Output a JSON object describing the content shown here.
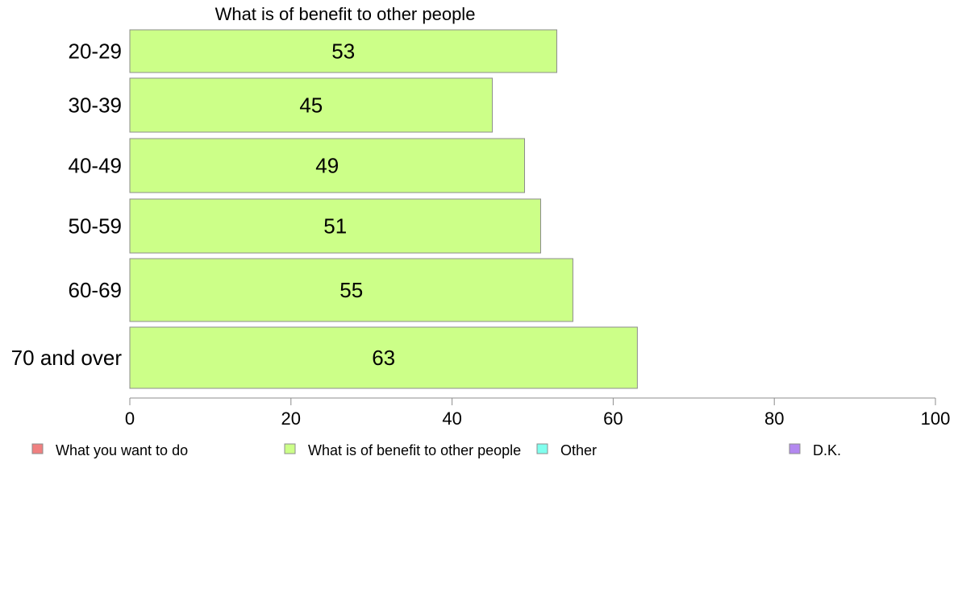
{
  "chart_data": {
    "type": "bar",
    "orientation": "horizontal",
    "title": "What is of benefit to other people",
    "categories": [
      "20-29",
      "30-39",
      "40-49",
      "50-59",
      "60-69",
      "70 and over"
    ],
    "series": [
      {
        "name": "What is of benefit to other people",
        "values": [
          53,
          45,
          49,
          51,
          55,
          63
        ]
      }
    ],
    "xlim": [
      0,
      100
    ],
    "xticks": [
      "0",
      "20",
      "40",
      "60",
      "80",
      "100"
    ],
    "xtick_values": [
      0,
      20,
      40,
      60,
      80,
      100
    ],
    "grid": false,
    "legend_position": "bottom",
    "legend": [
      {
        "label": "What you want to do",
        "color": "#f08080"
      },
      {
        "label": "What is of benefit to other people",
        "color": "#ccff88"
      },
      {
        "label": "Other",
        "color": "#80ffee"
      },
      {
        "label": "D.K.",
        "color": "#b388f0"
      }
    ],
    "bar_color": "#ccff88",
    "bar_stroke": "#8c8c8c"
  }
}
